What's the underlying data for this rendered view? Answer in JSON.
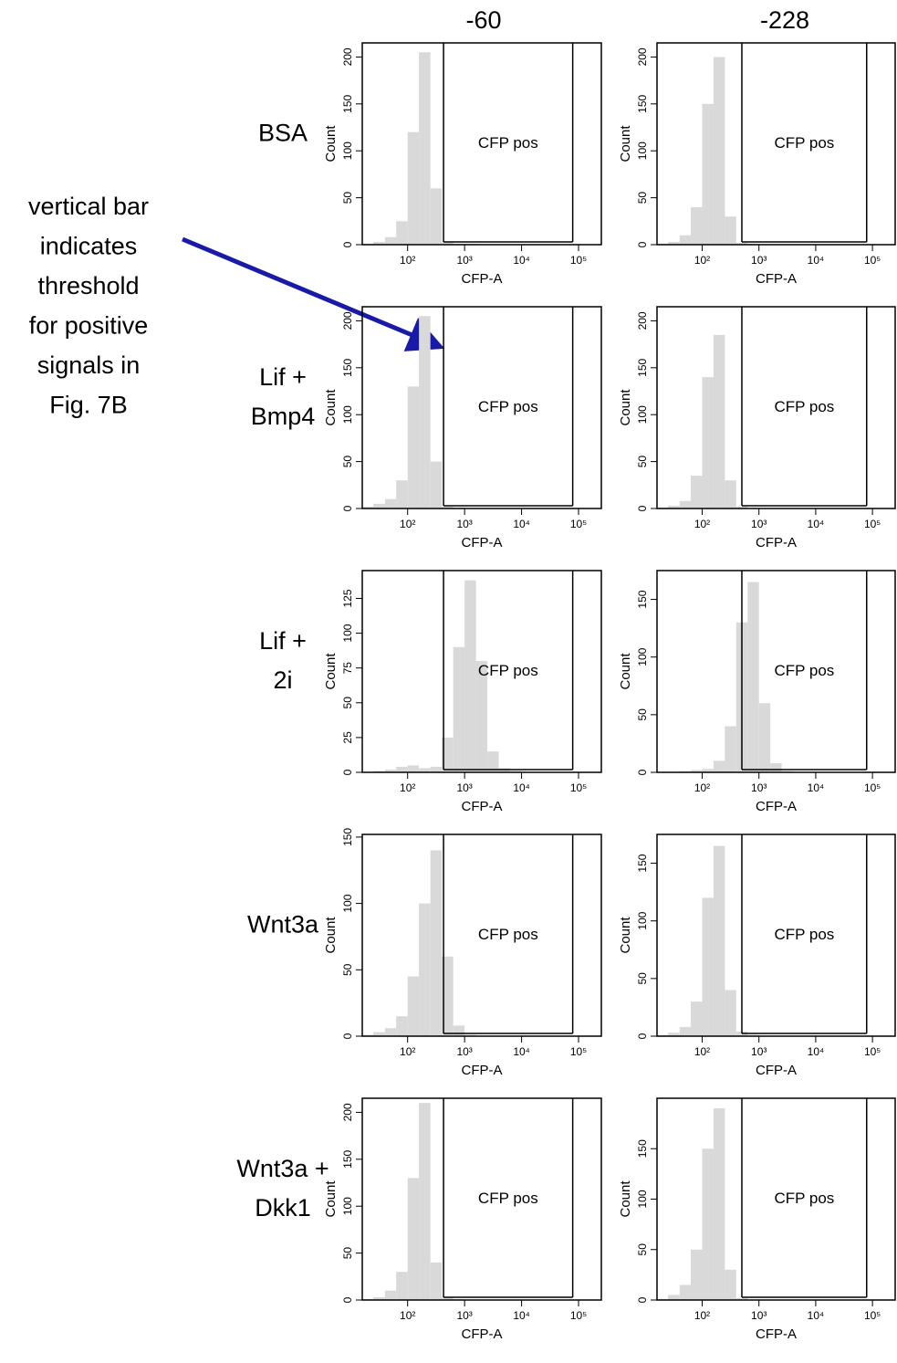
{
  "columns": [
    "-60",
    "-228"
  ],
  "rows": [
    [
      "BSA"
    ],
    [
      "Lif +",
      "Bmp4"
    ],
    [
      "Lif +",
      "2i"
    ],
    [
      "Wnt3a"
    ],
    [
      "Wnt3a +",
      "Dkk1"
    ]
  ],
  "annotation": [
    "vertical bar",
    "indicates",
    "threshold",
    "for positive",
    "signals in",
    "Fig. 7B"
  ],
  "chart_data": [
    {
      "type": "histogram",
      "xlabel": "CFP-A",
      "ylabel": "Count",
      "gate_label": "CFP pos",
      "log_x": true,
      "color": "#d9d9d9",
      "bins": [
        16,
        25,
        40,
        63,
        100,
        158,
        251,
        398,
        631,
        1000,
        1585,
        2512,
        3981,
        6310,
        10000,
        15849,
        25119,
        39811,
        63096,
        100000,
        158489,
        251189
      ],
      "values": [
        1,
        3,
        8,
        25,
        120,
        205,
        60,
        3,
        1,
        1,
        0,
        0,
        0,
        0,
        0,
        0,
        0,
        0,
        0,
        0,
        0
      ],
      "gate": [
        427,
        79000
      ],
      "xlim": [
        16,
        251189
      ],
      "ylim": [
        0,
        215
      ],
      "xticks": [
        {
          "value": 100,
          "label": "10²"
        },
        {
          "value": 1000,
          "label": "10³"
        },
        {
          "value": 10000,
          "label": "10⁴"
        },
        {
          "value": 100000,
          "label": "10⁵"
        }
      ],
      "yticks": [
        0,
        50,
        100,
        150,
        200
      ]
    },
    {
      "type": "histogram",
      "xlabel": "CFP-A",
      "ylabel": "Count",
      "gate_label": "CFP pos",
      "log_x": true,
      "color": "#d9d9d9",
      "bins": [
        16,
        25,
        40,
        63,
        100,
        158,
        251,
        398,
        631,
        1000,
        1585,
        2512,
        3981,
        6310,
        10000,
        15849,
        25119,
        39811,
        63096,
        100000,
        158489,
        251189
      ],
      "values": [
        1,
        3,
        10,
        40,
        150,
        200,
        30,
        2,
        1,
        0,
        0,
        0,
        0,
        0,
        0,
        0,
        0,
        0,
        0,
        0,
        0
      ],
      "gate": [
        500,
        79000
      ],
      "xlim": [
        16,
        251189
      ],
      "ylim": [
        0,
        215
      ],
      "xticks": [
        {
          "value": 100,
          "label": "10²"
        },
        {
          "value": 1000,
          "label": "10³"
        },
        {
          "value": 10000,
          "label": "10⁴"
        },
        {
          "value": 100000,
          "label": "10⁵"
        }
      ],
      "yticks": [
        0,
        50,
        100,
        150,
        200
      ]
    },
    {
      "type": "histogram",
      "xlabel": "CFP-A",
      "ylabel": "Count",
      "gate_label": "CFP pos",
      "log_x": true,
      "color": "#d9d9d9",
      "bins": [
        16,
        25,
        40,
        63,
        100,
        158,
        251,
        398,
        631,
        1000,
        1585,
        2512,
        3981,
        6310,
        10000,
        15849,
        25119,
        39811,
        63096,
        100000,
        158489,
        251189
      ],
      "values": [
        2,
        5,
        10,
        30,
        130,
        205,
        50,
        2,
        1,
        0,
        0,
        0,
        0,
        0,
        0,
        0,
        0,
        0,
        0,
        0,
        0
      ],
      "gate": [
        427,
        79000
      ],
      "xlim": [
        16,
        251189
      ],
      "ylim": [
        0,
        215
      ],
      "xticks": [
        {
          "value": 100,
          "label": "10²"
        },
        {
          "value": 1000,
          "label": "10³"
        },
        {
          "value": 10000,
          "label": "10⁴"
        },
        {
          "value": 100000,
          "label": "10⁵"
        }
      ],
      "yticks": [
        0,
        50,
        100,
        150,
        200
      ]
    },
    {
      "type": "histogram",
      "xlabel": "CFP-A",
      "ylabel": "Count",
      "gate_label": "CFP pos",
      "log_x": true,
      "color": "#d9d9d9",
      "bins": [
        16,
        25,
        40,
        63,
        100,
        158,
        251,
        398,
        631,
        1000,
        1585,
        2512,
        3981,
        6310,
        10000,
        15849,
        25119,
        39811,
        63096,
        100000,
        158489,
        251189
      ],
      "values": [
        1,
        3,
        8,
        35,
        140,
        185,
        30,
        2,
        0,
        0,
        0,
        0,
        0,
        0,
        0,
        0,
        0,
        0,
        0,
        0,
        0
      ],
      "gate": [
        500,
        79000
      ],
      "xlim": [
        16,
        251189
      ],
      "ylim": [
        0,
        215
      ],
      "xticks": [
        {
          "value": 100,
          "label": "10²"
        },
        {
          "value": 1000,
          "label": "10³"
        },
        {
          "value": 10000,
          "label": "10⁴"
        },
        {
          "value": 100000,
          "label": "10⁵"
        }
      ],
      "yticks": [
        0,
        50,
        100,
        150,
        200
      ]
    },
    {
      "type": "histogram",
      "xlabel": "CFP-A",
      "ylabel": "Count",
      "gate_label": "CFP pos",
      "log_x": true,
      "color": "#d9d9d9",
      "bins": [
        16,
        25,
        40,
        63,
        100,
        158,
        251,
        398,
        631,
        1000,
        1585,
        2512,
        3981,
        6310,
        10000,
        15849,
        25119,
        39811,
        63096,
        100000,
        158489,
        251189
      ],
      "values": [
        0,
        1,
        2,
        4,
        5,
        3,
        4,
        25,
        90,
        138,
        80,
        15,
        3,
        1,
        0,
        0,
        0,
        0,
        0,
        0,
        0
      ],
      "gate": [
        427,
        79000
      ],
      "xlim": [
        16,
        251189
      ],
      "ylim": [
        0,
        145
      ],
      "xticks": [
        {
          "value": 100,
          "label": "10²"
        },
        {
          "value": 1000,
          "label": "10³"
        },
        {
          "value": 10000,
          "label": "10⁴"
        },
        {
          "value": 100000,
          "label": "10⁵"
        }
      ],
      "yticks": [
        0,
        25,
        50,
        75,
        100,
        125
      ]
    },
    {
      "type": "histogram",
      "xlabel": "CFP-A",
      "ylabel": "Count",
      "gate_label": "CFP pos",
      "log_x": true,
      "color": "#d9d9d9",
      "bins": [
        16,
        25,
        40,
        63,
        100,
        158,
        251,
        398,
        631,
        1000,
        1585,
        2512,
        3981,
        6310,
        10000,
        15849,
        25119,
        39811,
        63096,
        100000,
        158489,
        251189
      ],
      "values": [
        0,
        0,
        1,
        2,
        3,
        10,
        40,
        130,
        165,
        60,
        8,
        1,
        0,
        0,
        0,
        0,
        0,
        0,
        0,
        0,
        0
      ],
      "gate": [
        500,
        79000
      ],
      "xlim": [
        16,
        251189
      ],
      "ylim": [
        0,
        175
      ],
      "xticks": [
        {
          "value": 100,
          "label": "10²"
        },
        {
          "value": 1000,
          "label": "10³"
        },
        {
          "value": 10000,
          "label": "10⁴"
        },
        {
          "value": 100000,
          "label": "10⁵"
        }
      ],
      "yticks": [
        0,
        50,
        100,
        150
      ]
    },
    {
      "type": "histogram",
      "xlabel": "CFP-A",
      "ylabel": "Count",
      "gate_label": "CFP pos",
      "log_x": true,
      "color": "#d9d9d9",
      "bins": [
        16,
        25,
        40,
        63,
        100,
        158,
        251,
        398,
        631,
        1000,
        1585,
        2512,
        3981,
        6310,
        10000,
        15849,
        25119,
        39811,
        63096,
        100000,
        158489,
        251189
      ],
      "values": [
        1,
        3,
        6,
        15,
        45,
        100,
        140,
        60,
        8,
        1,
        0,
        0,
        0,
        0,
        0,
        0,
        0,
        0,
        0,
        0,
        0
      ],
      "gate": [
        427,
        79000
      ],
      "xlim": [
        16,
        251189
      ],
      "ylim": [
        0,
        152
      ],
      "xticks": [
        {
          "value": 100,
          "label": "10²"
        },
        {
          "value": 1000,
          "label": "10³"
        },
        {
          "value": 10000,
          "label": "10⁴"
        },
        {
          "value": 100000,
          "label": "10⁵"
        }
      ],
      "yticks": [
        0,
        50,
        100,
        150
      ]
    },
    {
      "type": "histogram",
      "xlabel": "CFP-A",
      "ylabel": "Count",
      "gate_label": "CFP pos",
      "log_x": true,
      "color": "#d9d9d9",
      "bins": [
        16,
        25,
        40,
        63,
        100,
        158,
        251,
        398,
        631,
        1000,
        1585,
        2512,
        3981,
        6310,
        10000,
        15849,
        25119,
        39811,
        63096,
        100000,
        158489,
        251189
      ],
      "values": [
        1,
        3,
        8,
        30,
        120,
        165,
        40,
        4,
        1,
        0,
        0,
        0,
        0,
        0,
        0,
        0,
        0,
        0,
        0,
        0,
        0
      ],
      "gate": [
        500,
        79000
      ],
      "xlim": [
        16,
        251189
      ],
      "ylim": [
        0,
        175
      ],
      "xticks": [
        {
          "value": 100,
          "label": "10²"
        },
        {
          "value": 1000,
          "label": "10³"
        },
        {
          "value": 10000,
          "label": "10⁴"
        },
        {
          "value": 100000,
          "label": "10⁵"
        }
      ],
      "yticks": [
        0,
        50,
        100,
        150
      ]
    },
    {
      "type": "histogram",
      "xlabel": "CFP-A",
      "ylabel": "Count",
      "gate_label": "CFP pos",
      "log_x": true,
      "color": "#d9d9d9",
      "bins": [
        16,
        25,
        40,
        63,
        100,
        158,
        251,
        398,
        631,
        1000,
        1585,
        2512,
        3981,
        6310,
        10000,
        15849,
        25119,
        39811,
        63096,
        100000,
        158489,
        251189
      ],
      "values": [
        1,
        3,
        10,
        30,
        130,
        210,
        40,
        3,
        1,
        0,
        0,
        0,
        0,
        0,
        0,
        0,
        0,
        0,
        0,
        0,
        0
      ],
      "gate": [
        427,
        79000
      ],
      "xlim": [
        16,
        251189
      ],
      "ylim": [
        0,
        215
      ],
      "xticks": [
        {
          "value": 100,
          "label": "10²"
        },
        {
          "value": 1000,
          "label": "10³"
        },
        {
          "value": 10000,
          "label": "10⁴"
        },
        {
          "value": 100000,
          "label": "10⁵"
        }
      ],
      "yticks": [
        0,
        50,
        100,
        150,
        200
      ]
    },
    {
      "type": "histogram",
      "xlabel": "CFP-A",
      "ylabel": "Count",
      "gate_label": "CFP pos",
      "log_x": true,
      "color": "#d9d9d9",
      "bins": [
        16,
        25,
        40,
        63,
        100,
        158,
        251,
        398,
        631,
        1000,
        1585,
        2512,
        3981,
        6310,
        10000,
        15849,
        25119,
        39811,
        63096,
        100000,
        158489,
        251189
      ],
      "values": [
        1,
        5,
        15,
        50,
        150,
        190,
        30,
        2,
        0,
        0,
        0,
        0,
        0,
        0,
        0,
        0,
        0,
        0,
        0,
        0,
        0
      ],
      "gate": [
        500,
        79000
      ],
      "xlim": [
        16,
        251189
      ],
      "ylim": [
        0,
        200
      ],
      "xticks": [
        {
          "value": 100,
          "label": "10²"
        },
        {
          "value": 1000,
          "label": "10³"
        },
        {
          "value": 10000,
          "label": "10⁴"
        },
        {
          "value": 100000,
          "label": "10⁵"
        }
      ],
      "yticks": [
        0,
        50,
        100,
        150
      ]
    }
  ]
}
